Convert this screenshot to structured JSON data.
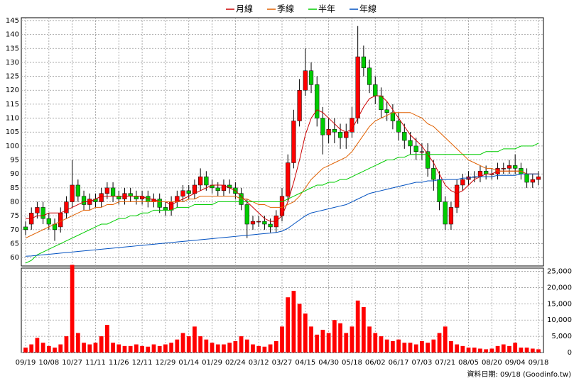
{
  "chart_data": {
    "type": "candlestick",
    "categories": [
      "09/19",
      null,
      null,
      null,
      "10/08",
      null,
      null,
      null,
      "10/27",
      null,
      null,
      null,
      "11/11",
      null,
      null,
      null,
      "11/26",
      null,
      null,
      null,
      "12/11",
      null,
      null,
      null,
      "12/29",
      null,
      null,
      null,
      "01/14",
      null,
      null,
      null,
      "01/29",
      null,
      null,
      null,
      "02/24",
      null,
      null,
      null,
      "03/12",
      null,
      null,
      null,
      "03/27",
      null,
      null,
      null,
      "04/15",
      null,
      null,
      null,
      "04/30",
      null,
      null,
      null,
      "05/18",
      null,
      null,
      null,
      "06/02",
      null,
      null,
      null,
      "06/17",
      null,
      null,
      null,
      "07/03",
      null,
      null,
      null,
      "07/21",
      null,
      null,
      null,
      "08/05",
      null,
      null,
      null,
      "08/20",
      null,
      null,
      null,
      "09/04",
      null,
      null,
      null,
      "09/18"
    ],
    "open": [
      71,
      72,
      76,
      78,
      74,
      72,
      71,
      76,
      80,
      86,
      82,
      79,
      81,
      80,
      83,
      85,
      82,
      81,
      83,
      82,
      81,
      82,
      80,
      81,
      78,
      77,
      80,
      82,
      84,
      83,
      86,
      89,
      86,
      85,
      84,
      86,
      85,
      83,
      79,
      72,
      73,
      73,
      72,
      71,
      75,
      82,
      94,
      109,
      120,
      127,
      122,
      110,
      104,
      106,
      105,
      103,
      105,
      110,
      132,
      128,
      122,
      118,
      113,
      112,
      109,
      105,
      102,
      100,
      98,
      98,
      92,
      88,
      80,
      72,
      78,
      86,
      88,
      89,
      89,
      91,
      90,
      90,
      92,
      92,
      93,
      92,
      90,
      87,
      88
    ],
    "high": [
      73,
      78,
      80,
      80,
      76,
      74,
      78,
      82,
      95,
      88,
      84,
      83,
      83,
      85,
      87,
      87,
      84,
      85,
      85,
      84,
      84,
      84,
      83,
      83,
      80,
      82,
      84,
      86,
      86,
      88,
      92,
      91,
      88,
      87,
      88,
      88,
      87,
      85,
      81,
      75,
      75,
      75,
      74,
      77,
      85,
      97,
      113,
      124,
      135,
      130,
      125,
      114,
      110,
      110,
      108,
      108,
      114,
      143,
      136,
      131,
      125,
      121,
      116,
      115,
      112,
      108,
      105,
      103,
      101,
      101,
      95,
      91,
      82,
      80,
      88,
      90,
      91,
      91,
      93,
      93,
      92,
      94,
      94,
      95,
      97,
      94,
      92,
      90,
      91
    ],
    "low": [
      68,
      70,
      74,
      72,
      70,
      66,
      69,
      74,
      78,
      80,
      77,
      77,
      78,
      78,
      81,
      80,
      79,
      79,
      80,
      79,
      79,
      78,
      78,
      76,
      75,
      75,
      78,
      80,
      81,
      81,
      84,
      84,
      83,
      82,
      82,
      83,
      81,
      77,
      67,
      70,
      71,
      70,
      69,
      69,
      73,
      80,
      92,
      107,
      118,
      119,
      107,
      97,
      101,
      101,
      99,
      99,
      103,
      108,
      125,
      119,
      115,
      110,
      109,
      106,
      102,
      99,
      97,
      95,
      95,
      89,
      84,
      77,
      70,
      70,
      76,
      84,
      86,
      87,
      87,
      88,
      88,
      88,
      90,
      90,
      90,
      88,
      85,
      85,
      86
    ],
    "close": [
      70,
      76,
      78,
      74,
      72,
      70,
      76,
      80,
      86,
      82,
      79,
      81,
      80,
      83,
      85,
      82,
      81,
      83,
      82,
      81,
      82,
      80,
      81,
      78,
      77,
      80,
      82,
      84,
      83,
      86,
      89,
      86,
      85,
      84,
      86,
      85,
      83,
      79,
      72,
      73,
      73,
      72,
      71,
      75,
      82,
      94,
      109,
      120,
      127,
      122,
      110,
      104,
      106,
      105,
      103,
      105,
      110,
      132,
      128,
      122,
      118,
      113,
      112,
      109,
      105,
      102,
      100,
      98,
      98,
      92,
      88,
      80,
      72,
      78,
      86,
      88,
      89,
      89,
      91,
      90,
      90,
      92,
      92,
      93,
      92,
      90,
      87,
      88,
      89
    ],
    "up_color": "#ff0000",
    "down_color": "#00cc00",
    "series": [
      {
        "name": "月線",
        "color": "#cc0000",
        "values": [
          74,
          74,
          75,
          75,
          76,
          76,
          76,
          77,
          78,
          79,
          80,
          80,
          81,
          82,
          82,
          82,
          82,
          82,
          82,
          82,
          82,
          81,
          81,
          80,
          80,
          79,
          80,
          81,
          82,
          83,
          84,
          85,
          86,
          86,
          86,
          85,
          84,
          82,
          80,
          78,
          76,
          74,
          73,
          73,
          75,
          80,
          87,
          95,
          104,
          110,
          113,
          112,
          110,
          108,
          106,
          105,
          106,
          110,
          114,
          117,
          118,
          118,
          116,
          113,
          110,
          107,
          104,
          102,
          100,
          97,
          94,
          90,
          86,
          84,
          83,
          84,
          86,
          88,
          89,
          90,
          90,
          91,
          91,
          91,
          91,
          91,
          90,
          90,
          90
        ]
      },
      {
        "name": "季線",
        "color": "#e06000",
        "values": [
          67,
          68,
          69,
          70,
          71,
          72,
          73,
          74,
          75,
          76,
          77,
          77,
          78,
          78,
          79,
          79,
          80,
          80,
          80,
          80,
          80,
          80,
          80,
          80,
          80,
          80,
          80,
          80,
          81,
          81,
          82,
          82,
          82,
          82,
          82,
          82,
          82,
          81,
          81,
          80,
          79,
          79,
          78,
          78,
          78,
          79,
          80,
          82,
          85,
          88,
          90,
          92,
          93,
          94,
          95,
          96,
          98,
          101,
          104,
          107,
          109,
          110,
          111,
          112,
          112,
          112,
          112,
          111,
          110,
          108,
          107,
          105,
          103,
          101,
          99,
          97,
          95,
          94,
          93,
          92,
          92,
          91,
          91,
          91,
          91,
          91,
          90,
          90,
          90
        ]
      },
      {
        "name": "半年",
        "color": "#00cc00",
        "values": [
          58,
          59,
          61,
          62,
          63,
          64,
          65,
          66,
          67,
          68,
          69,
          70,
          71,
          72,
          72,
          73,
          74,
          74,
          75,
          75,
          76,
          76,
          77,
          77,
          77,
          77,
          78,
          78,
          78,
          79,
          79,
          79,
          79,
          80,
          80,
          80,
          80,
          80,
          80,
          80,
          80,
          80,
          80,
          80,
          80,
          81,
          82,
          83,
          84,
          85,
          86,
          86,
          87,
          87,
          88,
          88,
          89,
          90,
          91,
          92,
          93,
          94,
          95,
          95,
          96,
          96,
          97,
          97,
          97,
          97,
          97,
          97,
          97,
          97,
          97,
          97,
          97,
          97,
          97,
          98,
          98,
          98,
          99,
          99,
          99,
          100,
          100,
          100,
          101
        ]
      },
      {
        "name": "年線",
        "color": "#0050c0",
        "values": [
          60.5,
          60.6,
          60.8,
          61,
          61.2,
          61.4,
          61.6,
          61.8,
          62,
          62.2,
          62.4,
          62.6,
          62.8,
          63,
          63.2,
          63.4,
          63.6,
          63.8,
          64,
          64.2,
          64.4,
          64.6,
          64.8,
          65,
          65.2,
          65.4,
          65.6,
          65.8,
          66,
          66.2,
          66.4,
          66.6,
          66.8,
          67,
          67.2,
          67.4,
          67.6,
          67.8,
          68,
          68.2,
          68.4,
          68.6,
          68.8,
          69,
          69.5,
          70.5,
          72,
          73.5,
          75,
          76,
          76.5,
          77,
          77.5,
          78,
          78.5,
          79,
          80,
          81,
          82,
          83,
          83.5,
          84,
          84.5,
          85,
          85.5,
          86,
          86.5,
          87,
          87,
          87.5,
          87.5,
          88,
          88,
          88,
          88,
          88.5,
          88.5,
          89,
          89,
          89,
          89,
          89.5,
          89.5,
          89.5,
          89.5,
          90,
          90,
          90,
          90
        ]
      }
    ],
    "ylim": [
      57,
      146
    ],
    "yticks": [
      60,
      65,
      70,
      75,
      80,
      85,
      90,
      95,
      100,
      105,
      110,
      115,
      120,
      125,
      130,
      135,
      140,
      145
    ],
    "grid": true,
    "volume": {
      "color": "#ff0000",
      "values": [
        1500,
        2500,
        4500,
        3000,
        2000,
        1500,
        2500,
        5000,
        27000,
        6000,
        3000,
        2500,
        3000,
        5000,
        8500,
        3000,
        2500,
        2000,
        2000,
        2500,
        2000,
        1800,
        2500,
        2000,
        2500,
        3000,
        4000,
        6000,
        5000,
        8000,
        5000,
        4000,
        3000,
        2500,
        2500,
        3000,
        3500,
        5000,
        4000,
        2500,
        2000,
        1800,
        2500,
        3500,
        8000,
        17000,
        19000,
        15000,
        12000,
        8000,
        5500,
        7000,
        6000,
        10000,
        9000,
        6000,
        8000,
        16000,
        14000,
        8000,
        6000,
        5000,
        4000,
        3500,
        4000,
        3000,
        3000,
        2500,
        3500,
        3000,
        4000,
        6000,
        8000,
        3500,
        2500,
        2000,
        1500,
        1500,
        1200,
        1000,
        1200,
        2000,
        2500,
        2000,
        3000,
        1500,
        1500,
        1200,
        1000
      ],
      "ylim": [
        0,
        26000
      ],
      "yticks": [
        0,
        {
          "value": 5000,
          "label": "5,000"
        },
        {
          "value": 10000,
          "label": "10,000"
        },
        {
          "value": 15000,
          "label": "15,000"
        },
        {
          "value": 20000,
          "label": "20,000"
        },
        {
          "value": 25000,
          "label": "25,000"
        }
      ]
    },
    "note": "資料日期: 09/18 (Goodinfo.tw)"
  }
}
